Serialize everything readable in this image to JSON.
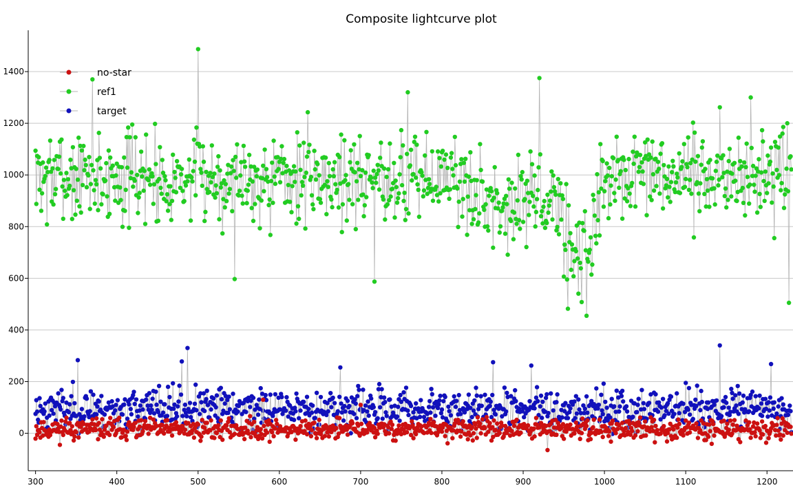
{
  "chart_data": {
    "type": "scatter",
    "title": "Composite lightcurve plot",
    "xlabel": "",
    "ylabel": "",
    "xlim": [
      291,
      1232
    ],
    "ylim": [
      -145,
      1560
    ],
    "x_ticks": [
      "300",
      "400",
      "500",
      "600",
      "700",
      "800",
      "900",
      "1000",
      "1100",
      "1200"
    ],
    "x_tick_values": [
      300,
      400,
      500,
      600,
      700,
      800,
      900,
      1000,
      1100,
      1200
    ],
    "y_ticks": [
      "0",
      "200",
      "400",
      "600",
      "800",
      "1000",
      "1200",
      "1400"
    ],
    "y_tick_values": [
      0,
      200,
      400,
      600,
      800,
      1000,
      1200,
      1400
    ],
    "grid": "horizontal",
    "legend_position": "top-left",
    "connect_points": true,
    "x_range": [
      300,
      1230
    ],
    "series": [
      {
        "name": "no-star",
        "color": "#cc1111",
        "base": 15,
        "noise": 28,
        "seed": 11,
        "notable_points": [
          [
            338,
            60
          ],
          [
            352,
            40
          ],
          [
            580,
            130
          ],
          [
            700,
            110
          ],
          [
            930,
            -65
          ]
        ]
      },
      {
        "name": "ref1",
        "color": "#22cc22",
        "base": 990,
        "noise": 125,
        "seed": 7,
        "notable_points": [
          [
            500,
            1487
          ],
          [
            545,
            597
          ],
          [
            370,
            1370
          ],
          [
            758,
            1320
          ],
          [
            717,
            587
          ],
          [
            920,
            1375
          ],
          [
            955,
            482
          ],
          [
            978,
            455
          ],
          [
            1142,
            1262
          ],
          [
            1180,
            1300
          ],
          [
            1225,
            1200
          ],
          [
            1227,
            505
          ],
          [
            425,
            1000
          ]
        ]
      },
      {
        "name": "target",
        "color": "#1111bb",
        "base": 95,
        "noise": 55,
        "seed": 23,
        "notable_points": [
          [
            352,
            283
          ],
          [
            487,
            330
          ],
          [
            480,
            278
          ],
          [
            863,
            275
          ],
          [
            1142,
            340
          ],
          [
            1205,
            268
          ],
          [
            910,
            262
          ],
          [
            675,
            255
          ]
        ]
      }
    ]
  }
}
